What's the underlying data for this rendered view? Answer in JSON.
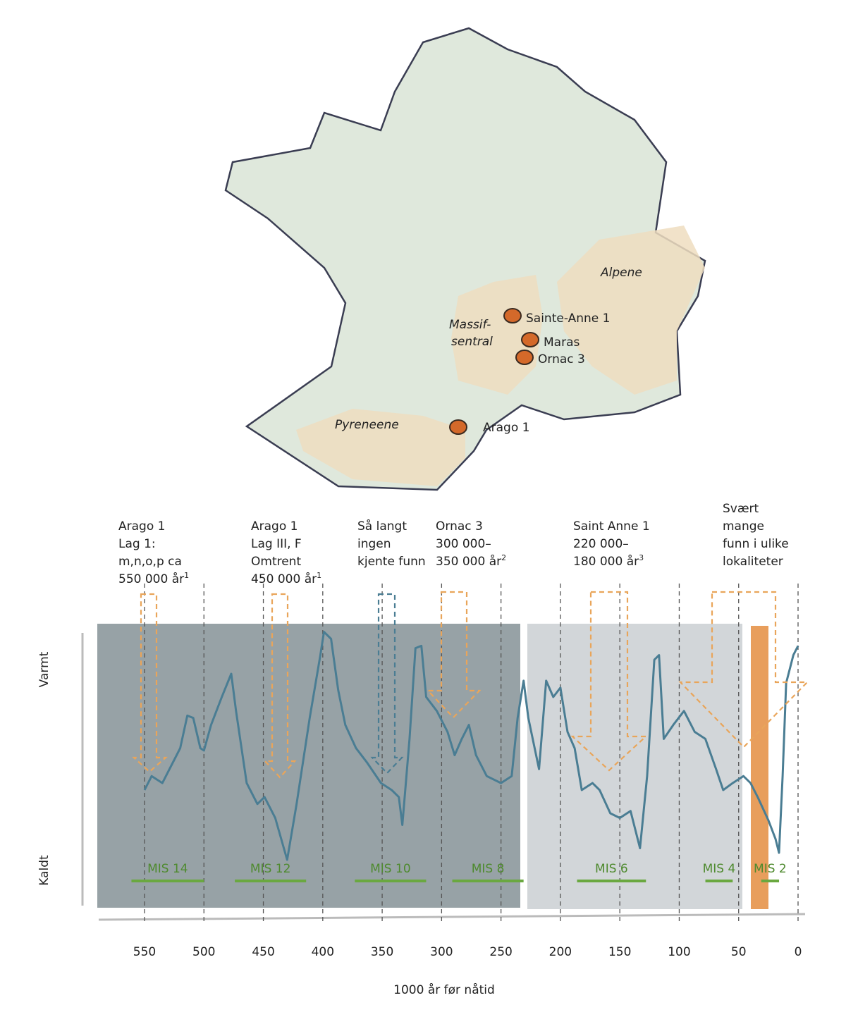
{
  "map": {
    "regions": [
      "Alpene",
      "Massif-",
      "sentral",
      "Pyreneene"
    ],
    "sites": [
      "Sainte-Anne 1",
      "Maras",
      "Ornac 3",
      "Arago 1"
    ]
  },
  "chart_data": {
    "type": "line",
    "x_label": "1000 år før nåtid",
    "y_label_top": "Varmt",
    "y_label_bottom": "Kaldt",
    "xlim": [
      590,
      -5
    ],
    "xticks": [
      550,
      500,
      450,
      400,
      350,
      300,
      250,
      200,
      150,
      100,
      50,
      0
    ],
    "ylim": [
      0,
      100
    ],
    "series": [
      {
        "color": "#4a7d93",
        "x": [
          550,
          544,
          535,
          529,
          520,
          514,
          509,
          503,
          500,
          494,
          485,
          477,
          473,
          464,
          455,
          449,
          440,
          430,
          422,
          411,
          402,
          399,
          393,
          387,
          381,
          372,
          363,
          351,
          342,
          336,
          333,
          327,
          322,
          317,
          313,
          304,
          295,
          289,
          283,
          277,
          271,
          262,
          250,
          241,
          236,
          231,
          227,
          218,
          212,
          206,
          200,
          194,
          188,
          182,
          173,
          167,
          158,
          150,
          141,
          133,
          127,
          121,
          117,
          113,
          105,
          96,
          87,
          78,
          69,
          63,
          55,
          46,
          40,
          34,
          25,
          19,
          16,
          13,
          10,
          4,
          0
        ],
        "values": [
          30,
          36,
          33,
          39,
          48,
          62,
          61,
          48,
          47,
          58,
          70,
          80,
          64,
          33,
          24,
          27,
          18,
          0,
          24,
          61,
          88,
          98,
          95,
          73,
          58,
          48,
          42,
          33,
          30,
          27,
          15,
          52,
          91,
          92,
          70,
          64,
          55,
          45,
          52,
          58,
          45,
          36,
          33,
          36,
          61,
          77,
          61,
          39,
          77,
          70,
          74,
          55,
          48,
          30,
          33,
          30,
          20,
          18,
          21,
          5,
          36,
          86,
          88,
          52,
          58,
          64,
          55,
          52,
          39,
          30,
          33,
          36,
          33,
          27,
          17,
          9,
          3,
          36,
          76,
          88,
          92
        ]
      }
    ],
    "mis": [
      {
        "label": "MIS 14",
        "start": 561,
        "end": 500
      },
      {
        "label": "MIS 12",
        "start": 474,
        "end": 414
      },
      {
        "label": "MIS 10",
        "start": 373,
        "end": 313
      },
      {
        "label": "MIS 8",
        "start": 291,
        "end": 231
      },
      {
        "label": "MIS 6",
        "start": 186,
        "end": 128
      },
      {
        "label": "MIS 4",
        "start": 78,
        "end": 55
      },
      {
        "label": "MIS 2",
        "start": 31,
        "end": 16
      }
    ],
    "annotations": [
      {
        "lines": [
          "Arago 1",
          "Lag 1:",
          "m,n,o,p ca",
          "550 000 år"
        ],
        "sup": "1"
      },
      {
        "lines": [
          "Arago 1",
          "Lag III, F",
          "Omtrent",
          "450 000 år"
        ],
        "sup": "1"
      },
      {
        "lines": [
          "Så langt",
          "ingen",
          "kjente funn"
        ]
      },
      {
        "lines": [
          "Ornac 3",
          "300 000–",
          "350 000 år"
        ],
        "sup": "2"
      },
      {
        "lines": [
          "Saint Anne 1",
          "220 000–",
          "180 000 år"
        ],
        "sup": "3"
      },
      {
        "lines": [
          "Svært",
          "mange",
          "funn i ulike",
          "lokaliteter"
        ]
      }
    ]
  }
}
